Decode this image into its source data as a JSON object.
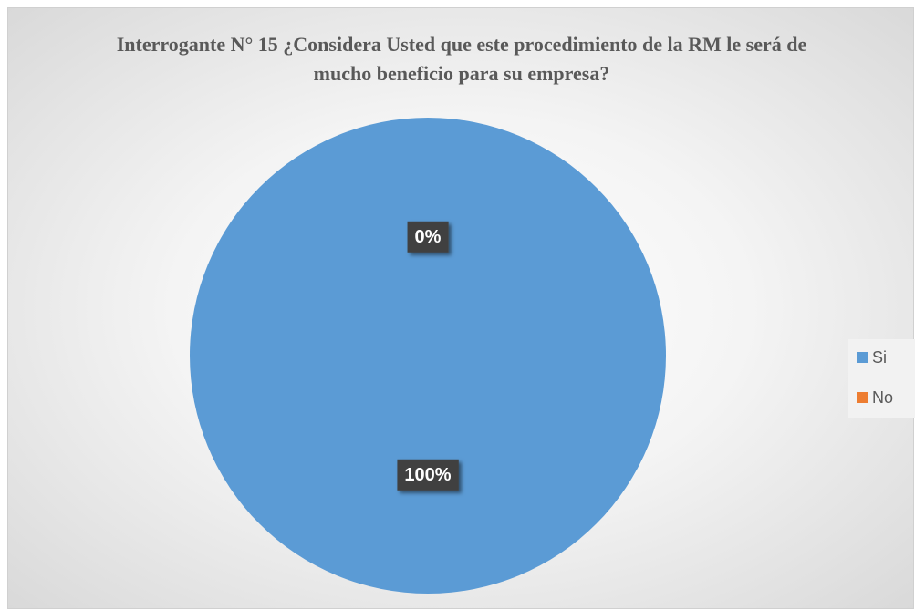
{
  "chart_data": {
    "type": "pie",
    "title": "Interrogante N° 15 ¿Considera Usted que este procedimiento de la RM le será de mucho beneficio para su empresa?",
    "categories": [
      "Si",
      "No"
    ],
    "values": [
      100,
      0
    ],
    "value_labels": [
      "100%",
      "0%"
    ],
    "colors": [
      "#5b9bd5",
      "#ed7d31"
    ],
    "legend": "right"
  }
}
